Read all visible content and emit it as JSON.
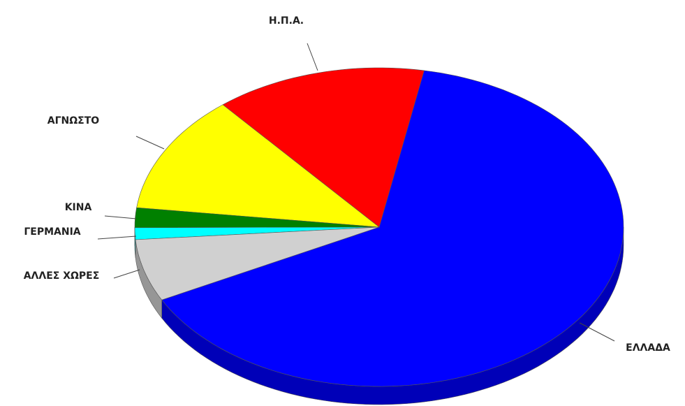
{
  "chart_data": {
    "type": "pie",
    "categories": [
      "ΕΛΛΑΔΑ",
      "Η.Π.Α.",
      "ΑΓΝΩΣΤΟ",
      "ΚΙΝΑ",
      "ΓΕΡΜΑΝΙΑ",
      "ΑΛΛΕΣ ΧΩΡΕΣ"
    ],
    "values": [
      64.5,
      14,
      12,
      2,
      1.2,
      6.3
    ],
    "colors": [
      "#0000ff",
      "#ff0000",
      "#ffff00",
      "#008000",
      "#00ffff",
      "#d0d0d0"
    ]
  }
}
